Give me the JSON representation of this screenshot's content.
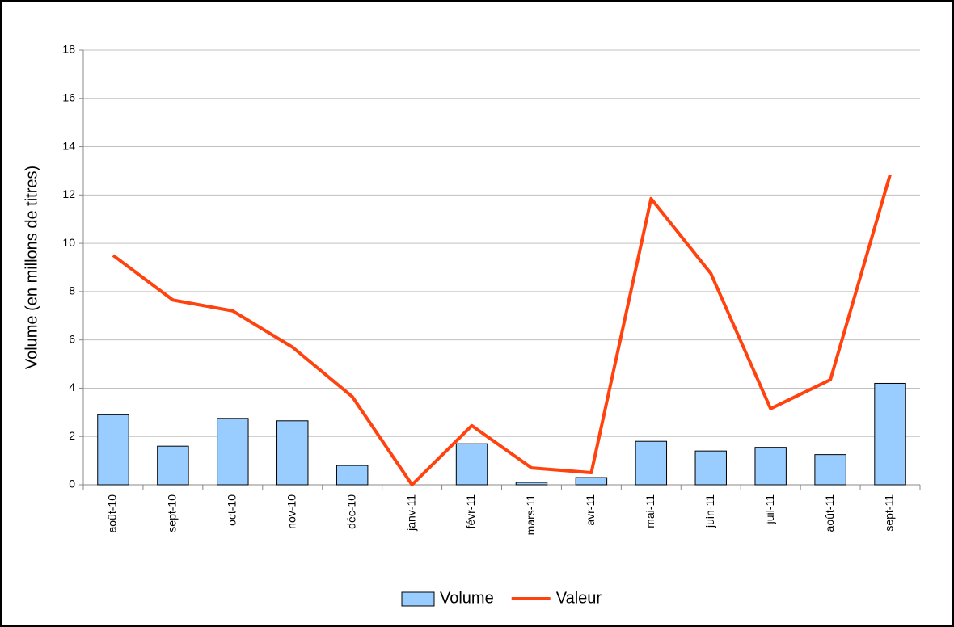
{
  "chart_data": {
    "type": "bar-line",
    "y_label": "Volume (en millons de titres)",
    "categories": [
      "août-10",
      "sept-10",
      "oct-10",
      "nov-10",
      "déc-10",
      "janv-11",
      "févr-11",
      "mars-11",
      "avr-11",
      "mai-11",
      "juin-11",
      "juil-11",
      "août-11",
      "sept-11"
    ],
    "series": [
      {
        "name": "Volume",
        "type": "bar",
        "color": "#99ccff",
        "values": [
          2.9,
          1.6,
          2.75,
          2.65,
          0.8,
          0,
          1.7,
          0.1,
          0.3,
          1.8,
          1.4,
          1.55,
          1.25,
          4.2
        ]
      },
      {
        "name": "Valeur",
        "type": "line",
        "color": "#ff420e",
        "values": [
          9.5,
          7.65,
          7.2,
          5.7,
          3.65,
          0,
          2.45,
          0.7,
          0.5,
          11.85,
          8.75,
          3.15,
          4.35,
          12.85
        ]
      }
    ],
    "ylim": [
      0,
      18
    ],
    "yticks": [
      0,
      2,
      4,
      6,
      8,
      10,
      12,
      14,
      16,
      18
    ],
    "grid": true,
    "legend": "bottom"
  }
}
